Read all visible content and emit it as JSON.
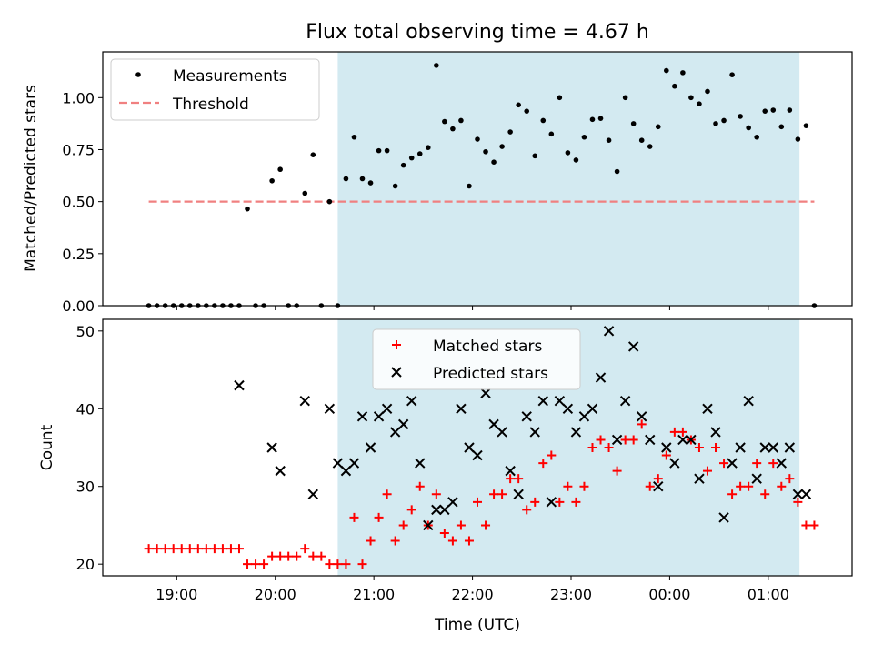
{
  "figure": {
    "title": "Flux total observing time = 4.67 h"
  },
  "colors": {
    "shade": "#d3eaf1",
    "measurement": "#000000",
    "threshold": "#f08080",
    "matched": "#ff0000",
    "predicted": "#000000"
  },
  "chart_data": [
    {
      "type": "scatter",
      "panel": "top",
      "title": "Flux total observing time = 4.67 h",
      "xlabel": "",
      "ylabel": "Matched/Predicted stars",
      "x_unit": "UTC time (hours; values >= 24 are after midnight)",
      "xlim": [
        18.25,
        1.85
      ],
      "xlim_note": "x axis continues past midnight: 18.25 to 25.85",
      "ylim": [
        0,
        1.22
      ],
      "xticks": [
        "19:00",
        "20:00",
        "21:00",
        "22:00",
        "23:00",
        "00:00",
        "01:00"
      ],
      "yticks": [
        "0.00",
        "0.25",
        "0.50",
        "0.75",
        "1.00"
      ],
      "shaded_interval": [
        "20:38",
        "01:19"
      ],
      "legend_position": "upper left",
      "series": [
        {
          "name": "Measurements",
          "kind": "scatter",
          "x": [
            "18:43",
            "18:48",
            "18:53",
            "18:58",
            "19:03",
            "19:08",
            "19:13",
            "19:18",
            "19:23",
            "19:28",
            "19:33",
            "19:38",
            "19:43",
            "19:48",
            "19:53",
            "19:58",
            "20:03",
            "20:08",
            "20:13",
            "20:18",
            "20:23",
            "20:28",
            "20:33",
            "20:38",
            "20:43",
            "20:48",
            "20:53",
            "20:58",
            "21:03",
            "21:08",
            "21:13",
            "21:18",
            "21:23",
            "21:28",
            "21:33",
            "21:38",
            "21:43",
            "21:48",
            "21:53",
            "21:58",
            "22:03",
            "22:08",
            "22:13",
            "22:18",
            "22:23",
            "22:28",
            "22:33",
            "22:38",
            "22:43",
            "22:48",
            "22:53",
            "22:58",
            "23:03",
            "23:08",
            "23:13",
            "23:18",
            "23:23",
            "23:28",
            "23:33",
            "23:38",
            "23:43",
            "23:48",
            "23:53",
            "23:58",
            "00:03",
            "00:08",
            "00:13",
            "00:18",
            "00:23",
            "00:28",
            "00:33",
            "00:38",
            "00:43",
            "00:48",
            "00:53",
            "00:58",
            "01:03",
            "01:08",
            "01:13",
            "01:18",
            "01:23",
            "01:28"
          ],
          "y": [
            0,
            0,
            0,
            0,
            0,
            0,
            0,
            0,
            0,
            0,
            0,
            0,
            0.465,
            0,
            0,
            0.6,
            0.655,
            0,
            0,
            0.54,
            0.725,
            0,
            0.5,
            0,
            0.61,
            0.81,
            0.61,
            0.59,
            0.745,
            0.745,
            0.575,
            0.675,
            0.71,
            0.73,
            0.76,
            1.155,
            0.885,
            0.85,
            0.89,
            0.575,
            0.8,
            0.74,
            0.69,
            0.765,
            0.835,
            0.965,
            0.935,
            0.72,
            0.89,
            0.825,
            1.0,
            0.735,
            0.7,
            0.81,
            0.895,
            0.9,
            0.795,
            0.645,
            1.0,
            0.875,
            0.795,
            0.765,
            0.86,
            1.13,
            1.055,
            1.12,
            1.0,
            0.97,
            1.03,
            0.875,
            0.89,
            1.11,
            0.91,
            0.855,
            0.81,
            0.935,
            0.94,
            0.86,
            0.94,
            0.8,
            0.865,
            0
          ]
        },
        {
          "name": "Threshold",
          "kind": "dashed-line",
          "x": [
            "18:43",
            "01:28"
          ],
          "y": [
            0.5,
            0.5
          ]
        }
      ]
    },
    {
      "type": "scatter",
      "panel": "bottom",
      "title": "",
      "xlabel": "Time (UTC)",
      "ylabel": "Count",
      "xlim_note": "x axis continues past midnight: 18.25 to 25.85",
      "ylim": [
        18.5,
        51.5
      ],
      "xticks": [
        "19:00",
        "20:00",
        "21:00",
        "22:00",
        "23:00",
        "00:00",
        "01:00"
      ],
      "yticks": [
        "20",
        "30",
        "40",
        "50"
      ],
      "shaded_interval": [
        "20:38",
        "01:19"
      ],
      "legend_position": "upper center",
      "series": [
        {
          "name": "Matched stars",
          "kind": "plus-markers",
          "x": [
            "18:43",
            "18:48",
            "18:53",
            "18:58",
            "19:03",
            "19:08",
            "19:13",
            "19:18",
            "19:23",
            "19:28",
            "19:33",
            "19:38",
            "19:43",
            "19:48",
            "19:53",
            "19:58",
            "20:03",
            "20:08",
            "20:13",
            "20:18",
            "20:23",
            "20:28",
            "20:33",
            "20:38",
            "20:43",
            "20:48",
            "20:53",
            "20:58",
            "21:03",
            "21:08",
            "21:13",
            "21:18",
            "21:23",
            "21:28",
            "21:33",
            "21:38",
            "21:43",
            "21:48",
            "21:53",
            "21:58",
            "22:03",
            "22:08",
            "22:13",
            "22:18",
            "22:23",
            "22:28",
            "22:33",
            "22:38",
            "22:43",
            "22:48",
            "22:53",
            "22:58",
            "23:03",
            "23:08",
            "23:13",
            "23:18",
            "23:23",
            "23:28",
            "23:33",
            "23:38",
            "23:43",
            "23:48",
            "23:53",
            "23:58",
            "00:03",
            "00:08",
            "00:13",
            "00:18",
            "00:23",
            "00:28",
            "00:33",
            "00:38",
            "00:43",
            "00:48",
            "00:53",
            "00:58",
            "01:03",
            "01:08",
            "01:13",
            "01:18",
            "01:23",
            "01:28"
          ],
          "y": [
            22,
            22,
            22,
            22,
            22,
            22,
            22,
            22,
            22,
            22,
            22,
            22,
            20,
            20,
            20,
            21,
            21,
            21,
            21,
            22,
            21,
            21,
            20,
            20,
            20,
            26,
            20,
            23,
            26,
            29,
            23,
            25,
            27,
            30,
            25,
            29,
            24,
            23,
            25,
            23,
            28,
            25,
            29,
            29,
            31,
            31,
            27,
            28,
            33,
            34,
            28,
            30,
            28,
            30,
            35,
            36,
            35,
            32,
            36,
            36,
            38,
            30,
            31,
            34,
            37,
            37,
            36,
            35,
            32,
            35,
            33,
            29,
            30,
            30,
            33,
            29,
            33,
            30,
            31,
            28,
            25,
            25
          ]
        },
        {
          "name": "Predicted stars",
          "kind": "x-markers",
          "x": [
            "19:38",
            "19:58",
            "20:03",
            "20:18",
            "20:23",
            "20:33",
            "20:38",
            "20:43",
            "20:48",
            "20:53",
            "20:58",
            "21:03",
            "21:08",
            "21:13",
            "21:18",
            "21:23",
            "21:28",
            "21:33",
            "21:38",
            "21:43",
            "21:48",
            "21:53",
            "21:58",
            "22:03",
            "22:08",
            "22:13",
            "22:18",
            "22:23",
            "22:28",
            "22:33",
            "22:38",
            "22:43",
            "22:48",
            "22:53",
            "22:58",
            "23:03",
            "23:08",
            "23:13",
            "23:18",
            "23:23",
            "23:28",
            "23:33",
            "23:38",
            "23:43",
            "23:48",
            "23:53",
            "23:58",
            "00:03",
            "00:08",
            "00:13",
            "00:18",
            "00:23",
            "00:28",
            "00:33",
            "00:38",
            "00:43",
            "00:48",
            "00:53",
            "00:58",
            "01:03",
            "01:08",
            "01:13",
            "01:18",
            "01:23"
          ],
          "y": [
            43,
            35,
            32,
            41,
            29,
            40,
            33,
            32,
            33,
            39,
            35,
            39,
            40,
            37,
            38,
            41,
            33,
            25,
            27,
            27,
            28,
            40,
            35,
            34,
            42,
            38,
            37,
            32,
            29,
            39,
            37,
            41,
            28,
            41,
            40,
            37,
            39,
            40,
            44,
            50,
            36,
            41,
            48,
            39,
            36,
            30,
            35,
            33,
            36,
            36,
            31,
            40,
            37,
            26,
            33,
            35,
            41,
            31,
            35,
            35,
            33,
            35,
            29,
            29
          ]
        }
      ]
    }
  ]
}
